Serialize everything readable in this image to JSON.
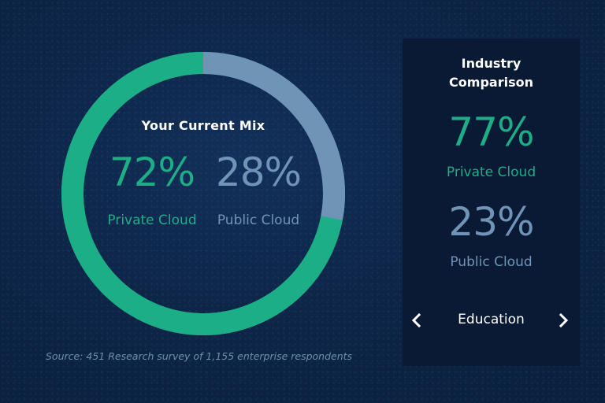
{
  "current_mix": {
    "title": "Your Current Mix",
    "private_pct": "72%",
    "private_label": "Private Cloud",
    "public_pct": "28%",
    "public_label": "Public Cloud",
    "private_share": 0.72,
    "public_share": 0.28
  },
  "industry": {
    "title_line1": "Industry",
    "title_line2": "Comparison",
    "private_pct": "77%",
    "private_label": "Private Cloud",
    "public_pct": "23%",
    "public_label": "Public Cloud",
    "selected_industry": "Education"
  },
  "source": "Source: 451 Research survey of 1,155 enterprise respondents",
  "colors": {
    "private": "#1cae86",
    "public": "#6f94b6",
    "background": "#0d2547",
    "panel": "#0a1a34"
  },
  "icons": {
    "prev": "chevron-left-icon",
    "next": "chevron-right-icon"
  }
}
